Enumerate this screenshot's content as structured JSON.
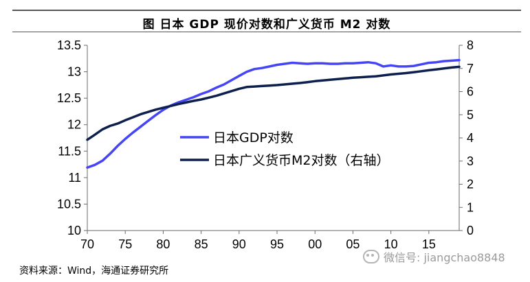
{
  "figure_title": "图  日本 GDP 现价对数和广义货币 M2 对数",
  "source": "资料来源：Wind，海通证券研究所",
  "watermark": "微信号: jiangchao8848",
  "colors": {
    "gdp": "#4545f5",
    "m2": "#0d1f4d",
    "axis": "#6a6a6a"
  },
  "chart_data": {
    "type": "line",
    "title": "图  日本 GDP 现价对数和广义货币 M2 对数",
    "x_tick_labels": [
      "70",
      "75",
      "80",
      "85",
      "90",
      "95",
      "00",
      "05",
      "10",
      "15"
    ],
    "x_tick_values": [
      1970,
      1975,
      1980,
      1985,
      1990,
      1995,
      2000,
      2005,
      2010,
      2015
    ],
    "xlim": [
      1970,
      2019
    ],
    "ylim_left": [
      10,
      13.5
    ],
    "y_left_ticks": [
      "10",
      "10.5",
      "11",
      "11.5",
      "12",
      "12.5",
      "13",
      "13.5"
    ],
    "ylim_right": [
      0,
      8
    ],
    "y_right_ticks": [
      "0",
      "1",
      "2",
      "3",
      "4",
      "5",
      "6",
      "7",
      "8"
    ],
    "legend_position": "center-left",
    "series": [
      {
        "name": "日本GDP对数",
        "axis": "left",
        "x": [
          1970,
          1971,
          1972,
          1973,
          1974,
          1975,
          1976,
          1977,
          1978,
          1979,
          1980,
          1981,
          1982,
          1983,
          1984,
          1985,
          1986,
          1987,
          1988,
          1989,
          1990,
          1991,
          1992,
          1993,
          1994,
          1995,
          1996,
          1997,
          1998,
          1999,
          2000,
          2001,
          2002,
          2003,
          2004,
          2005,
          2006,
          2007,
          2008,
          2009,
          2010,
          2011,
          2012,
          2013,
          2014,
          2015,
          2016,
          2017,
          2018,
          2019
        ],
        "values": [
          11.19,
          11.24,
          11.32,
          11.45,
          11.6,
          11.73,
          11.85,
          11.96,
          12.07,
          12.18,
          12.28,
          12.36,
          12.42,
          12.47,
          12.52,
          12.58,
          12.63,
          12.7,
          12.76,
          12.84,
          12.92,
          13.0,
          13.05,
          13.07,
          13.1,
          13.13,
          13.15,
          13.17,
          13.16,
          13.15,
          13.16,
          13.16,
          13.15,
          13.15,
          13.16,
          13.16,
          13.17,
          13.18,
          13.16,
          13.1,
          13.12,
          13.1,
          13.1,
          13.11,
          13.14,
          13.17,
          13.18,
          13.2,
          13.21,
          13.22
        ]
      },
      {
        "name": "日本广义货币M2对数（右轴）",
        "axis": "right",
        "x": [
          1970,
          1971,
          1972,
          1973,
          1974,
          1975,
          1976,
          1977,
          1978,
          1979,
          1980,
          1981,
          1982,
          1983,
          1984,
          1985,
          1986,
          1987,
          1988,
          1989,
          1990,
          1991,
          1992,
          1993,
          1994,
          1995,
          1996,
          1997,
          1998,
          1999,
          2000,
          2001,
          2002,
          2003,
          2004,
          2005,
          2006,
          2007,
          2008,
          2009,
          2010,
          2011,
          2012,
          2013,
          2014,
          2015,
          2016,
          2017,
          2018,
          2019
        ],
        "values": [
          3.92,
          4.14,
          4.37,
          4.52,
          4.62,
          4.76,
          4.89,
          5.02,
          5.12,
          5.22,
          5.3,
          5.38,
          5.46,
          5.53,
          5.6,
          5.66,
          5.74,
          5.82,
          5.92,
          6.02,
          6.12,
          6.2,
          6.22,
          6.24,
          6.26,
          6.28,
          6.31,
          6.34,
          6.37,
          6.41,
          6.45,
          6.48,
          6.51,
          6.54,
          6.57,
          6.6,
          6.62,
          6.64,
          6.66,
          6.7,
          6.74,
          6.77,
          6.8,
          6.84,
          6.88,
          6.92,
          6.96,
          7.0,
          7.04,
          7.07
        ]
      }
    ]
  }
}
